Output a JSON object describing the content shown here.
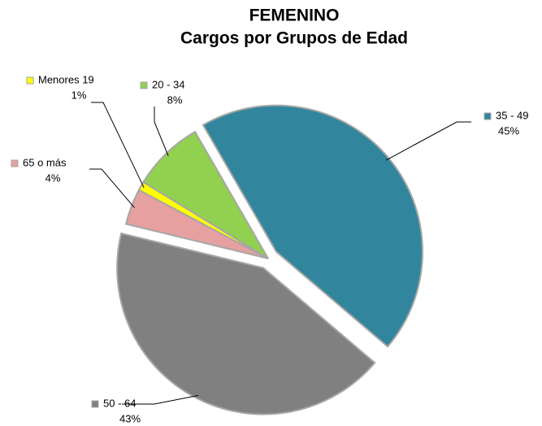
{
  "chart_data": {
    "type": "pie",
    "title": "FEMENINO",
    "subtitle": "Cargos por Grupos de Edad",
    "categories": [
      "35 - 49",
      "50 - 64",
      "65 o más",
      "Menores 19",
      "20 - 34"
    ],
    "values": [
      45,
      43,
      4,
      1,
      8
    ],
    "value_labels": [
      "45%",
      "43%",
      "4%",
      "1%",
      "8%"
    ],
    "colors": [
      "#31859c",
      "#808080",
      "#e6a0a0",
      "#ffff00",
      "#92d050"
    ],
    "exploded": [
      true,
      true,
      false,
      false,
      false
    ]
  }
}
